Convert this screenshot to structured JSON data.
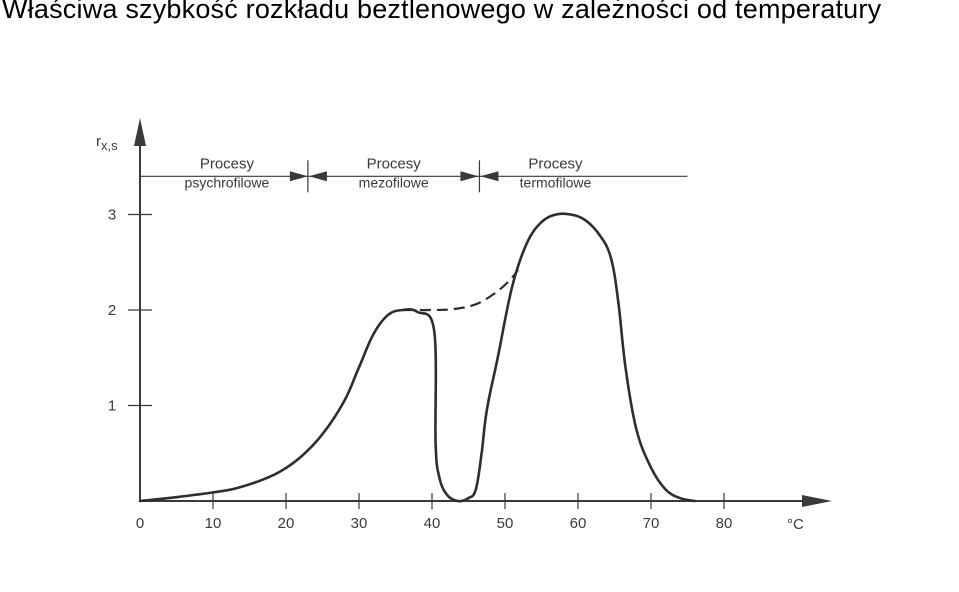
{
  "title": "Właściwa szybkość rozkładu beztlenowego w zależności od temperatury",
  "chart_data": {
    "type": "line",
    "ylabel": "r",
    "ylabel_sub": "x,s",
    "xlabel": "°C",
    "xlim": [
      0,
      95
    ],
    "ylim": [
      0,
      3.5
    ],
    "x_ticks": [
      0,
      10,
      20,
      30,
      40,
      50,
      60,
      70,
      80
    ],
    "y_ticks": [
      1,
      2,
      3
    ],
    "ranges": [
      {
        "line1": "Procesy",
        "line2": "psychrofilowe",
        "from": 0,
        "to": 23
      },
      {
        "line1": "Procesy",
        "line2": "mezofilowe",
        "from": 23,
        "to": 46.5
      },
      {
        "line1": "Procesy",
        "line2": "termofilowe",
        "from": 46.5,
        "to": 75
      }
    ],
    "series": [
      {
        "style": "solid",
        "points": [
          [
            0,
            0
          ],
          [
            5,
            0.04
          ],
          [
            10,
            0.09
          ],
          [
            13,
            0.13
          ],
          [
            16,
            0.2
          ],
          [
            19,
            0.3
          ],
          [
            22,
            0.46
          ],
          [
            25,
            0.7
          ],
          [
            28,
            1.05
          ],
          [
            30,
            1.4
          ],
          [
            32,
            1.75
          ],
          [
            34,
            1.95
          ],
          [
            36,
            2.0
          ],
          [
            38,
            1.98
          ],
          [
            40.3,
            1.78
          ],
          [
            40.5,
            0.6
          ],
          [
            41,
            0.25
          ],
          [
            42,
            0.07
          ],
          [
            43.5,
            0.0
          ],
          [
            45,
            0.03
          ],
          [
            46,
            0.12
          ],
          [
            46.8,
            0.5
          ],
          [
            47.5,
            0.95
          ],
          [
            49,
            1.5
          ],
          [
            51,
            2.25
          ],
          [
            53,
            2.7
          ],
          [
            55,
            2.92
          ],
          [
            57,
            3.0
          ],
          [
            59,
            3.0
          ],
          [
            61,
            2.94
          ],
          [
            63,
            2.78
          ],
          [
            64.5,
            2.55
          ],
          [
            65.5,
            2.1
          ],
          [
            66.5,
            1.4
          ],
          [
            68,
            0.75
          ],
          [
            70,
            0.35
          ],
          [
            72,
            0.12
          ],
          [
            74,
            0.03
          ],
          [
            76,
            0.0
          ]
        ]
      },
      {
        "style": "dashed",
        "points": [
          [
            36,
            2.0
          ],
          [
            40,
            2.0
          ],
          [
            43,
            2.01
          ],
          [
            46,
            2.06
          ],
          [
            48.5,
            2.17
          ],
          [
            50.5,
            2.3
          ],
          [
            51.8,
            2.42
          ]
        ]
      }
    ]
  }
}
